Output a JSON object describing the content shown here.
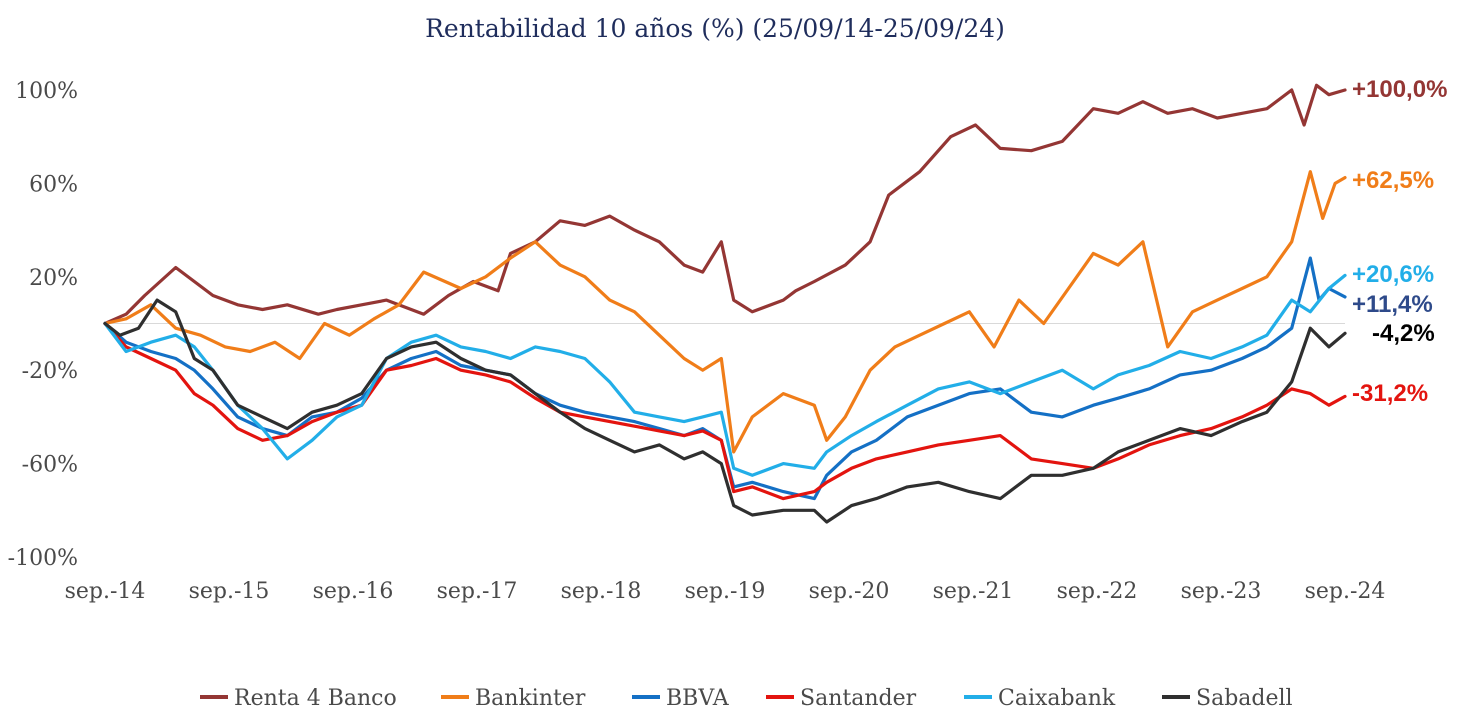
{
  "chart_data": {
    "type": "line",
    "title": "Rentabilidad 10 años (%) (25/09/14-25/09/24)",
    "xlabel": "",
    "ylabel": "",
    "x_tick_labels": [
      "sep.-14",
      "sep.-15",
      "sep.-16",
      "sep.-17",
      "sep.-18",
      "sep.-19",
      "sep.-20",
      "sep.-21",
      "sep.-22",
      "sep.-23",
      "sep.-24"
    ],
    "y_tick_labels": [
      "100%",
      "60%",
      "20%",
      "-20%",
      "-60%",
      "-100%"
    ],
    "ylim": [
      -100,
      100
    ],
    "grid": false,
    "zero_line": true,
    "legend_position": "bottom",
    "x_start": 2014.73,
    "x_end": 2024.73,
    "series": [
      {
        "name": "Renta 4 Banco",
        "color": "#943634",
        "end_label": "+100,0%",
        "end_value": 100.0,
        "x": [
          2014.73,
          2014.9,
          2015.05,
          2015.3,
          2015.45,
          2015.6,
          2015.8,
          2016.0,
          2016.2,
          2016.45,
          2016.6,
          2016.8,
          2017.0,
          2017.3,
          2017.5,
          2017.7,
          2017.9,
          2018.0,
          2018.2,
          2018.4,
          2018.6,
          2018.8,
          2019.0,
          2019.2,
          2019.4,
          2019.55,
          2019.7,
          2019.8,
          2019.95,
          2020.2,
          2020.3,
          2020.45,
          2020.7,
          2020.9,
          2021.05,
          2021.3,
          2021.55,
          2021.75,
          2021.95,
          2022.2,
          2022.45,
          2022.7,
          2022.9,
          2023.1,
          2023.3,
          2023.5,
          2023.7,
          2023.9,
          2024.1,
          2024.3,
          2024.4,
          2024.5,
          2024.6,
          2024.73
        ],
        "y": [
          0,
          4,
          12,
          24,
          18,
          12,
          8,
          6,
          8,
          4,
          6,
          8,
          10,
          4,
          12,
          18,
          14,
          30,
          35,
          44,
          42,
          46,
          40,
          35,
          25,
          22,
          35,
          10,
          5,
          10,
          14,
          18,
          25,
          35,
          55,
          65,
          80,
          85,
          75,
          74,
          78,
          92,
          90,
          95,
          90,
          92,
          88,
          90,
          92,
          100,
          85,
          102,
          98,
          100
        ]
      },
      {
        "name": "Bankinter",
        "color": "#f07d19",
        "end_label": "+62,5%",
        "end_value": 62.5,
        "x": [
          2014.73,
          2014.9,
          2015.1,
          2015.3,
          2015.5,
          2015.7,
          2015.9,
          2016.1,
          2016.3,
          2016.5,
          2016.7,
          2016.9,
          2017.1,
          2017.3,
          2017.6,
          2017.8,
          2018.0,
          2018.2,
          2018.4,
          2018.6,
          2018.8,
          2019.0,
          2019.2,
          2019.4,
          2019.55,
          2019.7,
          2019.8,
          2019.95,
          2020.2,
          2020.45,
          2020.55,
          2020.7,
          2020.9,
          2021.1,
          2021.3,
          2021.5,
          2021.7,
          2021.9,
          2022.1,
          2022.3,
          2022.5,
          2022.7,
          2022.9,
          2023.1,
          2023.3,
          2023.5,
          2023.7,
          2023.9,
          2024.1,
          2024.3,
          2024.45,
          2024.55,
          2024.65,
          2024.73
        ],
        "y": [
          0,
          2,
          8,
          -2,
          -5,
          -10,
          -12,
          -8,
          -15,
          0,
          -5,
          2,
          8,
          22,
          15,
          20,
          28,
          35,
          25,
          20,
          10,
          5,
          -5,
          -15,
          -20,
          -15,
          -55,
          -40,
          -30,
          -35,
          -50,
          -40,
          -20,
          -10,
          -5,
          0,
          5,
          -10,
          10,
          0,
          15,
          30,
          25,
          35,
          -10,
          5,
          10,
          15,
          20,
          35,
          65,
          45,
          60,
          62.5
        ]
      },
      {
        "name": "BBVA",
        "color": "#1470c5",
        "end_label": "+11,4%",
        "end_value": 11.4,
        "x": [
          2014.73,
          2014.9,
          2015.1,
          2015.3,
          2015.45,
          2015.6,
          2015.8,
          2016.0,
          2016.2,
          2016.4,
          2016.6,
          2016.8,
          2017.0,
          2017.2,
          2017.4,
          2017.6,
          2017.8,
          2018.0,
          2018.2,
          2018.4,
          2018.6,
          2018.8,
          2019.0,
          2019.2,
          2019.4,
          2019.55,
          2019.7,
          2019.8,
          2019.95,
          2020.2,
          2020.45,
          2020.55,
          2020.75,
          2020.95,
          2021.2,
          2021.45,
          2021.7,
          2021.95,
          2022.2,
          2022.45,
          2022.7,
          2022.9,
          2023.15,
          2023.4,
          2023.65,
          2023.9,
          2024.1,
          2024.3,
          2024.45,
          2024.52,
          2024.6,
          2024.73
        ],
        "y": [
          0,
          -8,
          -12,
          -15,
          -20,
          -28,
          -40,
          -45,
          -48,
          -40,
          -38,
          -32,
          -20,
          -15,
          -12,
          -18,
          -20,
          -22,
          -30,
          -35,
          -38,
          -40,
          -42,
          -45,
          -48,
          -45,
          -50,
          -70,
          -68,
          -72,
          -75,
          -65,
          -55,
          -50,
          -40,
          -35,
          -30,
          -28,
          -38,
          -40,
          -35,
          -32,
          -28,
          -22,
          -20,
          -15,
          -10,
          -2,
          28,
          10,
          15,
          11.4
        ]
      },
      {
        "name": "Santander",
        "color": "#e3140f",
        "end_label": "-31,2%",
        "end_value": -31.2,
        "x": [
          2014.73,
          2014.9,
          2015.1,
          2015.3,
          2015.45,
          2015.6,
          2015.8,
          2016.0,
          2016.2,
          2016.4,
          2016.6,
          2016.8,
          2017.0,
          2017.2,
          2017.4,
          2017.6,
          2017.8,
          2018.0,
          2018.2,
          2018.4,
          2018.6,
          2018.8,
          2019.0,
          2019.2,
          2019.4,
          2019.55,
          2019.7,
          2019.8,
          2019.95,
          2020.2,
          2020.45,
          2020.55,
          2020.75,
          2020.95,
          2021.2,
          2021.45,
          2021.7,
          2021.95,
          2022.2,
          2022.45,
          2022.7,
          2022.9,
          2023.15,
          2023.4,
          2023.65,
          2023.9,
          2024.1,
          2024.3,
          2024.45,
          2024.6,
          2024.73
        ],
        "y": [
          0,
          -10,
          -15,
          -20,
          -30,
          -35,
          -45,
          -50,
          -48,
          -42,
          -38,
          -35,
          -20,
          -18,
          -15,
          -20,
          -22,
          -25,
          -32,
          -38,
          -40,
          -42,
          -44,
          -46,
          -48,
          -46,
          -50,
          -72,
          -70,
          -75,
          -72,
          -68,
          -62,
          -58,
          -55,
          -52,
          -50,
          -48,
          -58,
          -60,
          -62,
          -58,
          -52,
          -48,
          -45,
          -40,
          -35,
          -28,
          -30,
          -35,
          -31.2
        ]
      },
      {
        "name": "Caixabank",
        "color": "#22aee8",
        "end_label": "+20,6%",
        "end_value": 20.6,
        "x": [
          2014.73,
          2014.9,
          2015.1,
          2015.3,
          2015.45,
          2015.6,
          2015.8,
          2016.0,
          2016.2,
          2016.4,
          2016.6,
          2016.8,
          2017.0,
          2017.2,
          2017.4,
          2017.6,
          2017.8,
          2018.0,
          2018.2,
          2018.4,
          2018.6,
          2018.8,
          2019.0,
          2019.2,
          2019.4,
          2019.55,
          2019.7,
          2019.8,
          2019.95,
          2020.2,
          2020.45,
          2020.55,
          2020.75,
          2020.95,
          2021.2,
          2021.45,
          2021.7,
          2021.95,
          2022.2,
          2022.45,
          2022.7,
          2022.9,
          2023.15,
          2023.4,
          2023.65,
          2023.9,
          2024.1,
          2024.3,
          2024.45,
          2024.6,
          2024.73
        ],
        "y": [
          0,
          -12,
          -8,
          -5,
          -10,
          -20,
          -35,
          -45,
          -58,
          -50,
          -40,
          -35,
          -15,
          -8,
          -5,
          -10,
          -12,
          -15,
          -10,
          -12,
          -15,
          -25,
          -38,
          -40,
          -42,
          -40,
          -38,
          -62,
          -65,
          -60,
          -62,
          -55,
          -48,
          -42,
          -35,
          -28,
          -25,
          -30,
          -25,
          -20,
          -28,
          -22,
          -18,
          -12,
          -15,
          -10,
          -5,
          10,
          5,
          15,
          20.6
        ]
      },
      {
        "name": "Sabadell",
        "color": "#2f2f2f",
        "end_label": "-4,2%",
        "end_value": -4.2,
        "x": [
          2014.73,
          2014.85,
          2015.0,
          2015.15,
          2015.3,
          2015.45,
          2015.6,
          2015.8,
          2016.0,
          2016.2,
          2016.4,
          2016.6,
          2016.8,
          2017.0,
          2017.2,
          2017.4,
          2017.6,
          2017.8,
          2018.0,
          2018.2,
          2018.4,
          2018.6,
          2018.8,
          2019.0,
          2019.2,
          2019.4,
          2019.55,
          2019.7,
          2019.8,
          2019.95,
          2020.2,
          2020.45,
          2020.55,
          2020.75,
          2020.95,
          2021.2,
          2021.45,
          2021.7,
          2021.95,
          2022.2,
          2022.45,
          2022.7,
          2022.9,
          2023.15,
          2023.4,
          2023.65,
          2023.9,
          2024.1,
          2024.3,
          2024.45,
          2024.6,
          2024.73
        ],
        "y": [
          0,
          -5,
          -2,
          10,
          5,
          -15,
          -20,
          -35,
          -40,
          -45,
          -38,
          -35,
          -30,
          -15,
          -10,
          -8,
          -15,
          -20,
          -22,
          -30,
          -38,
          -45,
          -50,
          -55,
          -52,
          -58,
          -55,
          -60,
          -78,
          -82,
          -80,
          -80,
          -85,
          -78,
          -75,
          -70,
          -68,
          -72,
          -75,
          -65,
          -65,
          -62,
          -55,
          -50,
          -45,
          -48,
          -42,
          -38,
          -25,
          -2,
          -10,
          -4.2
        ]
      }
    ]
  }
}
